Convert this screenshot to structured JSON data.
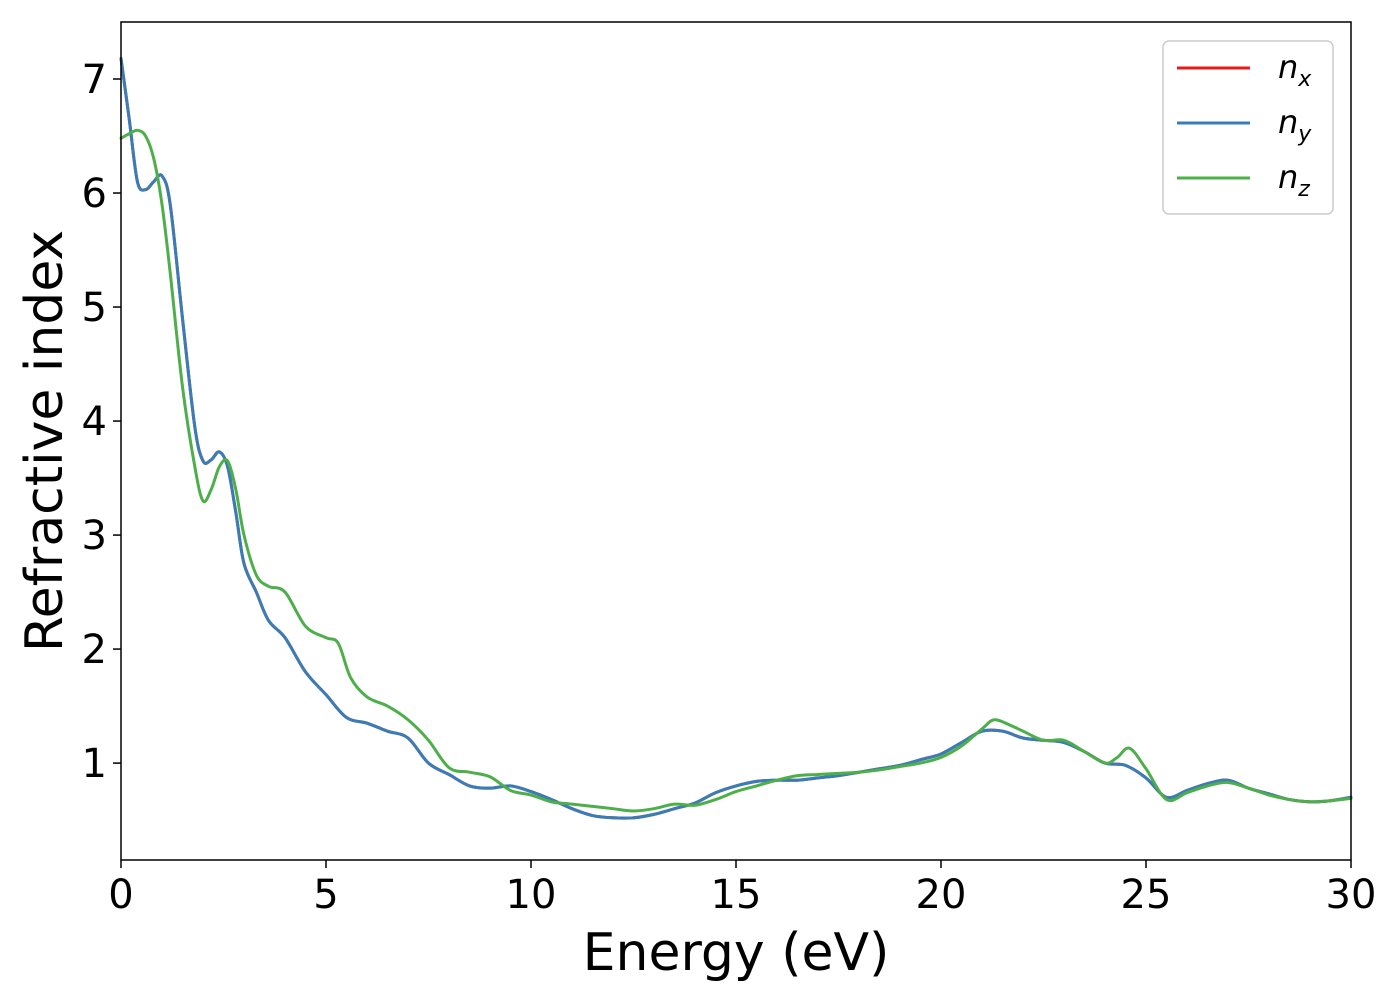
{
  "chart_data": {
    "type": "line",
    "title": "",
    "xlabel": "Energy (eV)",
    "ylabel": "Refractive index",
    "xlim": [
      0,
      30
    ],
    "ylim": [
      0.15,
      7.5
    ],
    "xticks": [
      0,
      5,
      10,
      15,
      20,
      25,
      30
    ],
    "xtick_labels": [
      "0",
      "5",
      "10",
      "15",
      "20",
      "25",
      "30"
    ],
    "yticks": [
      1,
      2,
      3,
      4,
      5,
      6,
      7
    ],
    "ytick_labels": [
      "1",
      "2",
      "3",
      "4",
      "5",
      "6",
      "7"
    ],
    "grid": false,
    "legend_position": "top-right",
    "series": [
      {
        "name": "n_x",
        "legend_base": "n",
        "legend_sub": "x",
        "color": "#e41a1c",
        "x": [
          0,
          0.2,
          0.4,
          0.6,
          0.8,
          1.0,
          1.2,
          1.5,
          1.8,
          2.0,
          2.2,
          2.4,
          2.6,
          2.8,
          3.0,
          3.3,
          3.6,
          4.0,
          4.5,
          5.0,
          5.5,
          6.0,
          6.5,
          7.0,
          7.5,
          8.0,
          8.5,
          9.0,
          9.5,
          10.0,
          10.5,
          11.0,
          11.5,
          12.0,
          12.5,
          13.0,
          13.5,
          14.0,
          14.5,
          15.0,
          15.5,
          16.0,
          16.5,
          17.0,
          17.5,
          18.0,
          18.5,
          19.0,
          19.5,
          20.0,
          20.5,
          21.0,
          21.5,
          22.0,
          22.5,
          23.0,
          23.5,
          24.0,
          24.5,
          25.0,
          25.5,
          26.0,
          26.5,
          27.0,
          27.5,
          28.0,
          28.5,
          29.0,
          29.5,
          30.0
        ],
        "y": [
          7.18,
          6.65,
          6.1,
          6.03,
          6.1,
          6.15,
          5.9,
          4.9,
          3.95,
          3.65,
          3.66,
          3.73,
          3.6,
          3.2,
          2.75,
          2.5,
          2.25,
          2.1,
          1.8,
          1.6,
          1.4,
          1.35,
          1.28,
          1.22,
          1.0,
          0.9,
          0.8,
          0.78,
          0.8,
          0.75,
          0.68,
          0.6,
          0.54,
          0.52,
          0.52,
          0.55,
          0.6,
          0.65,
          0.74,
          0.8,
          0.84,
          0.85,
          0.85,
          0.87,
          0.89,
          0.92,
          0.95,
          0.98,
          1.03,
          1.08,
          1.18,
          1.28,
          1.28,
          1.22,
          1.2,
          1.18,
          1.1,
          1.0,
          0.98,
          0.87,
          0.7,
          0.76,
          0.82,
          0.85,
          0.78,
          0.73,
          0.68,
          0.66,
          0.67,
          0.7
        ]
      },
      {
        "name": "n_y",
        "legend_base": "n",
        "legend_sub": "y",
        "color": "#377eb8",
        "x": [
          0,
          0.2,
          0.4,
          0.6,
          0.8,
          1.0,
          1.2,
          1.5,
          1.8,
          2.0,
          2.2,
          2.4,
          2.6,
          2.8,
          3.0,
          3.3,
          3.6,
          4.0,
          4.5,
          5.0,
          5.5,
          6.0,
          6.5,
          7.0,
          7.5,
          8.0,
          8.5,
          9.0,
          9.5,
          10.0,
          10.5,
          11.0,
          11.5,
          12.0,
          12.5,
          13.0,
          13.5,
          14.0,
          14.5,
          15.0,
          15.5,
          16.0,
          16.5,
          17.0,
          17.5,
          18.0,
          18.5,
          19.0,
          19.5,
          20.0,
          20.5,
          21.0,
          21.5,
          22.0,
          22.5,
          23.0,
          23.5,
          24.0,
          24.5,
          25.0,
          25.5,
          26.0,
          26.5,
          27.0,
          27.5,
          28.0,
          28.5,
          29.0,
          29.5,
          30.0
        ],
        "y": [
          7.18,
          6.65,
          6.1,
          6.03,
          6.1,
          6.15,
          5.9,
          4.9,
          3.95,
          3.65,
          3.66,
          3.73,
          3.6,
          3.2,
          2.75,
          2.5,
          2.25,
          2.1,
          1.8,
          1.6,
          1.4,
          1.35,
          1.28,
          1.22,
          1.0,
          0.9,
          0.8,
          0.78,
          0.8,
          0.75,
          0.68,
          0.6,
          0.54,
          0.52,
          0.52,
          0.55,
          0.6,
          0.65,
          0.74,
          0.8,
          0.84,
          0.85,
          0.85,
          0.87,
          0.89,
          0.92,
          0.95,
          0.98,
          1.03,
          1.08,
          1.18,
          1.28,
          1.28,
          1.22,
          1.2,
          1.18,
          1.1,
          1.0,
          0.98,
          0.87,
          0.7,
          0.76,
          0.82,
          0.85,
          0.78,
          0.73,
          0.68,
          0.66,
          0.67,
          0.7
        ]
      },
      {
        "name": "n_z",
        "legend_base": "n",
        "legend_sub": "z",
        "color": "#4daf4a",
        "x": [
          0,
          0.2,
          0.4,
          0.6,
          0.8,
          1.0,
          1.2,
          1.5,
          1.8,
          2.0,
          2.2,
          2.4,
          2.6,
          2.8,
          3.0,
          3.3,
          3.6,
          4.0,
          4.5,
          5.0,
          5.3,
          5.6,
          6.0,
          6.5,
          7.0,
          7.5,
          8.0,
          8.5,
          9.0,
          9.5,
          10.0,
          10.5,
          11.0,
          11.5,
          12.0,
          12.5,
          13.0,
          13.5,
          14.0,
          14.5,
          15.0,
          15.5,
          16.0,
          16.5,
          17.0,
          17.5,
          18.0,
          18.5,
          19.0,
          19.5,
          20.0,
          20.5,
          21.0,
          21.3,
          21.7,
          22.0,
          22.5,
          23.0,
          23.5,
          24.0,
          24.3,
          24.6,
          25.0,
          25.5,
          26.0,
          26.5,
          27.0,
          27.5,
          28.0,
          28.5,
          29.0,
          29.5,
          30.0
        ],
        "y": [
          6.48,
          6.52,
          6.55,
          6.5,
          6.3,
          5.9,
          5.3,
          4.3,
          3.6,
          3.3,
          3.4,
          3.6,
          3.65,
          3.4,
          3.0,
          2.65,
          2.55,
          2.5,
          2.2,
          2.1,
          2.05,
          1.75,
          1.58,
          1.5,
          1.38,
          1.2,
          0.96,
          0.92,
          0.88,
          0.76,
          0.72,
          0.66,
          0.64,
          0.62,
          0.6,
          0.58,
          0.6,
          0.64,
          0.63,
          0.68,
          0.75,
          0.8,
          0.85,
          0.89,
          0.9,
          0.91,
          0.92,
          0.94,
          0.97,
          1.0,
          1.05,
          1.15,
          1.3,
          1.38,
          1.33,
          1.28,
          1.2,
          1.2,
          1.1,
          1.0,
          1.05,
          1.13,
          0.95,
          0.68,
          0.74,
          0.8,
          0.83,
          0.78,
          0.72,
          0.68,
          0.66,
          0.67,
          0.69
        ]
      }
    ]
  }
}
